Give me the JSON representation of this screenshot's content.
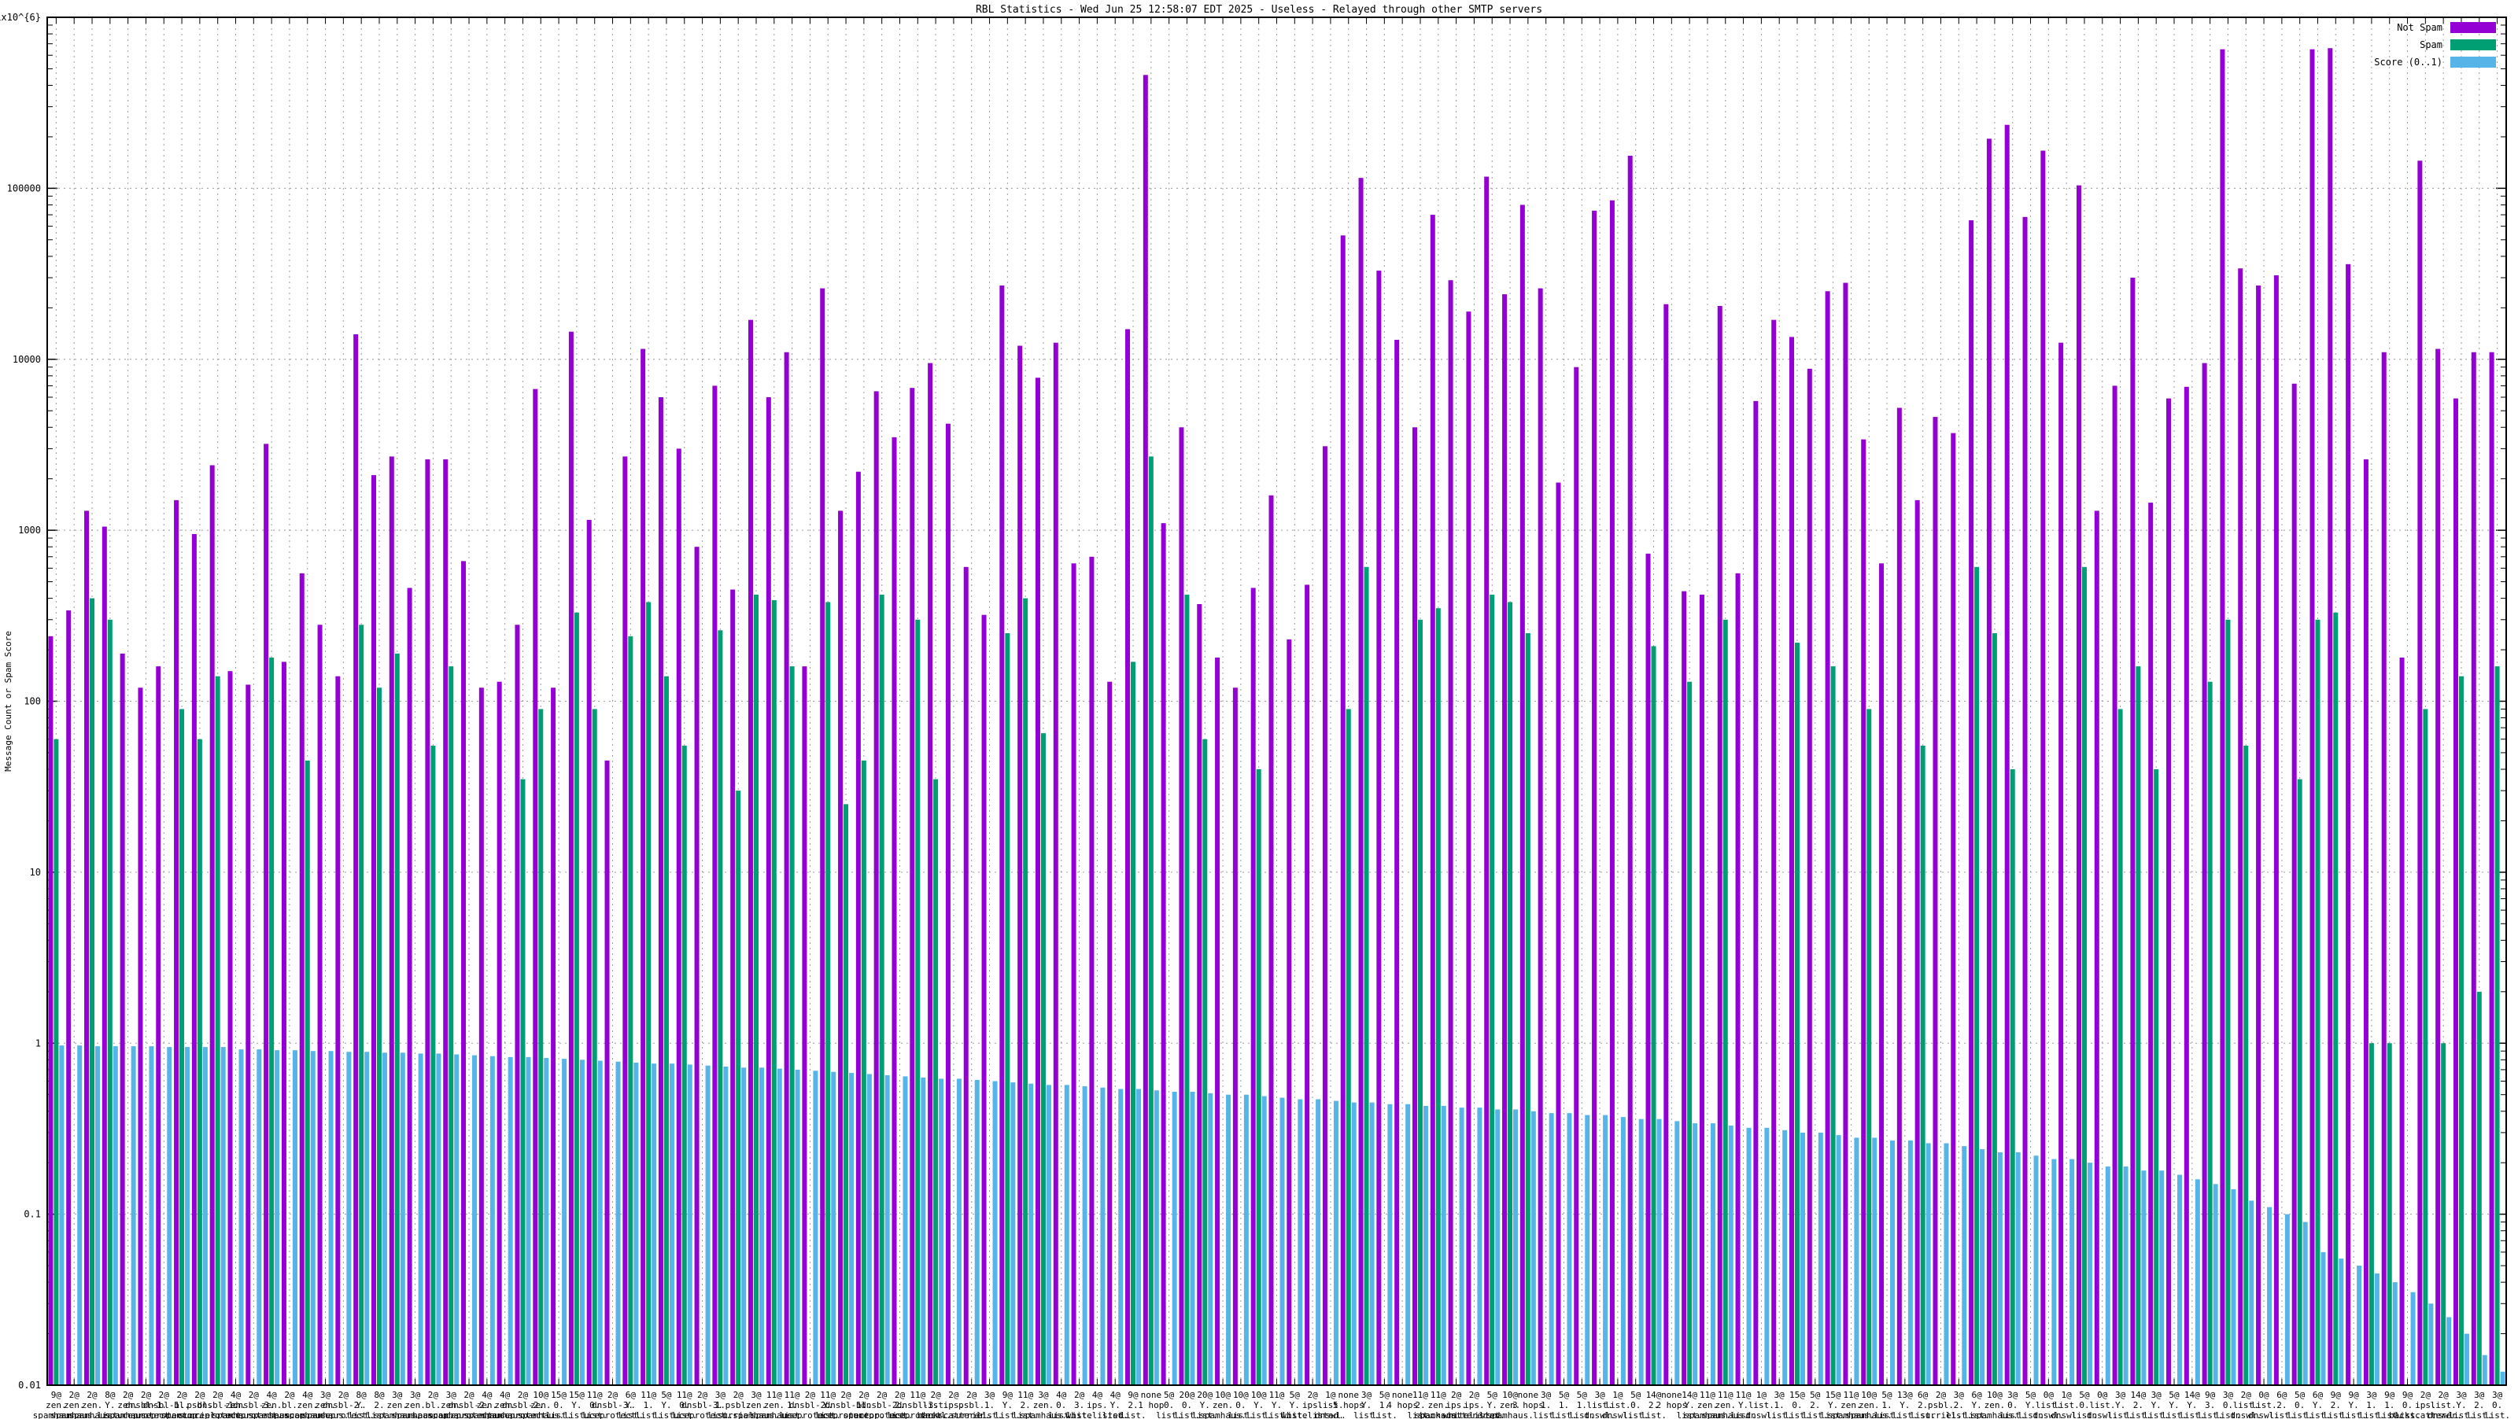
{
  "title": "RBL Statistics - Wed Jun 25 12:58:07 EDT 2025 - Useless - Relayed through other SMTP servers",
  "legend": [
    {
      "label": "Not Spam",
      "color": "#9400d3"
    },
    {
      "label": "Spam",
      "color": "#009e73"
    },
    {
      "label": "Score (0..1)",
      "color": "#56b4e9"
    }
  ],
  "y_axis": {
    "label": "Message Count or Spam Score",
    "tick_labels": [
      "1x10^{6}",
      "100000",
      "10000",
      "1000",
      "100",
      "10",
      "1",
      "0.1",
      "0.01"
    ],
    "min": 0.01,
    "max": 1000000,
    "scale": "log"
  },
  "grid": {
    "color": "#9a9a9a",
    "style": "dashed"
  },
  "chart_data": {
    "type": "bar",
    "series_names": [
      "Not Spam",
      "Spam",
      "Score (0..1)"
    ],
    "group_label_format": "count@ / rbl domain split on dots / hops",
    "groups": [
      [
        "9@",
        "zen.spamhaus.org",
        "1 hop",
        240,
        60,
        0.97
      ],
      [
        "2@",
        "zen.spamhaus.org",
        "3 hops",
        340,
        0,
        0.97
      ],
      [
        "2@",
        "zen.spamhaus.org",
        "4 hops",
        1300,
        400,
        0.96
      ],
      [
        "8@",
        "Y.list.dnswl.org",
        "2 hops",
        1050,
        300,
        0.96
      ],
      [
        "2@",
        "zen.spamhaus.org",
        "1 hop",
        190,
        0,
        0.96
      ],
      [
        "2@",
        "dnsbl-1.uceprotect.net",
        "3 hops",
        120,
        0,
        0.96
      ],
      [
        "2@",
        "dnsbl-1.uceprotect.net",
        "1 hop",
        160,
        0,
        0.95
      ],
      [
        "2@",
        "bl.spamcop.net",
        "3 hops",
        1500,
        90,
        0.95
      ],
      [
        "2@",
        "psbl.surriel.com",
        "1 hop",
        950,
        60,
        0.95
      ],
      [
        "2@",
        "dnsbl-1.uceprotect.net",
        "3 hops",
        2400,
        140,
        0.95
      ],
      [
        "4@",
        "zen.spamhaus.org",
        "5 hops",
        150,
        0,
        0.92
      ],
      [
        "2@",
        "dnsbl-3.uceprotect.net",
        "6 hops",
        125,
        0,
        0.92
      ],
      [
        "4@",
        "zen.spamhaus.org",
        "4 hops",
        3200,
        180,
        0.91
      ],
      [
        "2@",
        "bl.spamcop.net",
        "1 hop",
        170,
        0,
        0.91
      ],
      [
        "4@",
        "zen.spamhaus.org",
        "6 hops",
        560,
        45,
        0.9
      ],
      [
        "3@",
        "zen.spamhaus.org",
        "3 hops",
        280,
        0,
        0.9
      ],
      [
        "2@",
        "dnsbl-2.uceprotect.net",
        "2 hops",
        140,
        0,
        0.89
      ],
      [
        "8@",
        "Y.list.dnswl.org",
        "1 hop",
        14000,
        280,
        0.89
      ],
      [
        "8@",
        "2.list.dnswl.org",
        "1 hop",
        2100,
        120,
        0.88
      ],
      [
        "3@",
        "zen.spamhaus.org",
        "2 hops",
        2700,
        190,
        0.88
      ],
      [
        "3@",
        "zen.spamhaus.org",
        "5 hops",
        460,
        0,
        0.87
      ],
      [
        "2@",
        "bl.spamcop.net",
        "2 hops",
        2600,
        55,
        0.87
      ],
      [
        "3@",
        "zen.spamhaus.org",
        "5 hops",
        2600,
        160,
        0.86
      ],
      [
        "2@",
        "dnsbl-2.uceprotect.net",
        "4 hops",
        660,
        0,
        0.85
      ],
      [
        "4@",
        "zen.spamhaus.org",
        "1 hop",
        120,
        0,
        0.84
      ],
      [
        "4@",
        "zen.spamhaus.org",
        "3 hops",
        130,
        0,
        0.83
      ],
      [
        "2@",
        "dnsbl-2.uceprotect.net",
        "2 hops",
        280,
        35,
        0.83
      ],
      [
        "10@",
        "zen.spamhaus.org",
        "5 hops",
        6700,
        90,
        0.82
      ],
      [
        "15@",
        "0.list.dnswl.org",
        "1 hop",
        120,
        0,
        0.81
      ],
      [
        "15@",
        "Y.list.dnswl.org",
        "1 hop",
        14500,
        330,
        0.8
      ],
      [
        "11@",
        "0.list.dnswl.org",
        "1 hop",
        1150,
        90,
        0.79
      ],
      [
        "2@",
        "dnsbl-3.uceprotect.net",
        "5 hops",
        45,
        0,
        0.78
      ],
      [
        "6@",
        "Y.list.dnswl.org",
        "4 hops",
        2700,
        240,
        0.77
      ],
      [
        "11@",
        "1.list.dnswl.org",
        "2 hops",
        11500,
        380,
        0.76
      ],
      [
        "5@",
        "Y.list.dnswl.org",
        "5 hops",
        6000,
        140,
        0.76
      ],
      [
        "11@",
        "0.list.dnswl.org",
        "2 hops",
        3000,
        55,
        0.75
      ],
      [
        "2@",
        "dnsbl-3.uceprotect.net",
        "2 hops",
        800,
        0,
        0.74
      ],
      [
        "3@",
        "1.list.dnswl.org",
        "1 hop",
        7000,
        260,
        0.73
      ],
      [
        "2@",
        "psbl.surriel.com",
        "2 hops",
        450,
        30,
        0.72
      ],
      [
        "3@",
        "zen.spamhaus.org",
        "1 hop",
        17000,
        420,
        0.72
      ],
      [
        "11@",
        "zen.spamhaus.org",
        "3 hops",
        6000,
        390,
        0.71
      ],
      [
        "11@",
        "1.list.dnswl.org",
        "1 hop",
        11000,
        160,
        0.7
      ],
      [
        "2@",
        "dnsbl-2.uceprotect.net",
        "3 hops",
        160,
        0,
        0.69
      ],
      [
        "11@",
        "Y.list.dnswl.org",
        "1 hop",
        26000,
        380,
        0.68
      ],
      [
        "2@",
        "dnsbl-1.uceprotect.net",
        "7 hops",
        1300,
        25,
        0.67
      ],
      [
        "2@",
        "bl.spamcop.net",
        "5 hops",
        2200,
        45,
        0.66
      ],
      [
        "2@",
        "dnsbl-2.uceprotect.net",
        "1 hop",
        6500,
        420,
        0.65
      ],
      [
        "2@",
        "2.list.dnswl.org",
        "4 hops",
        3500,
        0,
        0.64
      ],
      [
        "11@",
        "dnsbl-3.uceprotect.net",
        "5 hops",
        6800,
        300,
        0.63
      ],
      [
        "2@",
        "list.dnswl.org",
        "4 hops",
        9500,
        35,
        0.62
      ],
      [
        "2@",
        "ips.backscatterer.org",
        "3 hops",
        4200,
        0,
        0.62
      ],
      [
        "2@",
        "psbl.surriel.com",
        "2 hops",
        610,
        0,
        0.61
      ],
      [
        "3@",
        "1.list.dnswl.org",
        "5 hops",
        320,
        0,
        0.6
      ],
      [
        "9@",
        "Y.list.dnswl.org",
        "4 hops",
        27000,
        250,
        0.59
      ],
      [
        "11@",
        "2.list.dnswl.org",
        "2 hops",
        12000,
        400,
        0.58
      ],
      [
        "3@",
        "zen.spamhaus.org",
        "1 hop",
        7800,
        65,
        0.57
      ],
      [
        "4@",
        "0.list.dnswl.org",
        "1 hop",
        12500,
        0,
        0.57
      ],
      [
        "2@",
        "3.list.dnswl.org",
        "1 hop",
        640,
        0,
        0.56
      ],
      [
        "4@",
        "ips.whitelisted.org",
        "1 hop",
        700,
        0,
        0.55
      ],
      [
        "4@",
        "Y.list.dnswl.org",
        "1 hop",
        130,
        0,
        0.54
      ],
      [
        "9@",
        "2.list.dnswl.org",
        "4 hops",
        15000,
        170,
        0.54
      ],
      [
        "none",
        "",
        "1 hop",
        460000,
        2700,
        0.53
      ],
      [
        "5@",
        "0.list.dnswl.org",
        "4 hops",
        1100,
        0,
        0.52
      ],
      [
        "20@",
        "0.list.dnswl.org",
        "1 hop",
        4000,
        420,
        0.52
      ],
      [
        "20@",
        "Y.list.dnswl.org",
        "1 hop",
        370,
        60,
        0.51
      ],
      [
        "10@",
        "zen.spamhaus.org",
        "1 hop",
        180,
        0,
        0.5
      ],
      [
        "10@",
        "0.list.dnswl.org",
        "1 hop",
        120,
        0,
        0.5
      ],
      [
        "10@",
        "Y.list.dnswl.org",
        "1 hop",
        460,
        40,
        0.49
      ],
      [
        "11@",
        "Y.list.dnswl.org",
        "1 hop",
        1600,
        0,
        0.48
      ],
      [
        "5@",
        "Y.list.dnswl.org",
        "4 hops",
        230,
        0,
        0.47
      ],
      [
        "2@",
        "ips.whitelisted.org",
        "4 hops",
        480,
        0,
        0.47
      ],
      [
        "1@",
        "list.dnswl.org",
        "5 hops",
        3100,
        0,
        0.46
      ],
      [
        "none",
        "",
        "5 hops",
        53000,
        90,
        0.45
      ],
      [
        "3@",
        "Y.list.dnswl.org",
        "1 hop",
        115000,
        610,
        0.45
      ],
      [
        "5@",
        "1.list.dnswl.org",
        "4 hops",
        33000,
        0,
        0.44
      ],
      [
        "none",
        "",
        "4 hops",
        13000,
        0,
        0.44
      ],
      [
        "11@",
        "2.list.dnswl.org",
        "2 hops",
        4000,
        300,
        0.43
      ],
      [
        "11@",
        "zen.spamhaus.org",
        "3 hops",
        70000,
        350,
        0.43
      ],
      [
        "2@",
        "ips.backscatterer.org",
        "2 hops",
        29000,
        0,
        0.42
      ],
      [
        "2@",
        "ips.whitelisted.org",
        "2 hops",
        19000,
        0,
        0.42
      ],
      [
        "5@",
        "Y.list.dnswl.org",
        "1 hop",
        117000,
        420,
        0.41
      ],
      [
        "10@",
        "zen.spamhaus.org",
        "3 hops",
        24000,
        380,
        0.41
      ],
      [
        "none",
        "",
        "3 hops",
        80000,
        250,
        0.4
      ],
      [
        "3@",
        "1.list.dnswl.org",
        "1 hop",
        26000,
        0,
        0.39
      ],
      [
        "5@",
        "1.list.dnswl.org",
        "1 hop",
        1900,
        0,
        0.39
      ],
      [
        "5@",
        "1.list.dnswl.org",
        "1 hop",
        9000,
        0,
        0.38
      ],
      [
        "3@",
        "list.dnswl.org",
        "1 hop",
        74000,
        0,
        0.38
      ],
      [
        "1@",
        "list.dnswl.org",
        "1 hop",
        85000,
        0,
        0.37
      ],
      [
        "5@",
        "0.list.dnswl.org",
        "1 hop",
        155000,
        0,
        0.36
      ],
      [
        "14@",
        "2.list.dnswl.org",
        "2 hops",
        730,
        210,
        0.36
      ],
      [
        "none",
        "",
        "2 hops",
        21000,
        0,
        0.35
      ],
      [
        "14@",
        "Y.list.dnswl.org",
        "1 hop",
        440,
        130,
        0.34
      ],
      [
        "11@",
        "zen.spamhaus.org",
        "6 hops",
        420,
        0,
        0.34
      ],
      [
        "11@",
        "zen.spamhaus.org",
        "1 hop",
        20500,
        300,
        0.33
      ],
      [
        "11@",
        "Y.list.dnswl.org",
        "3 hops",
        560,
        0,
        0.32
      ],
      [
        "1@",
        "list.dnswl.org",
        "3 hops",
        5700,
        0,
        0.32
      ],
      [
        "3@",
        "1.list.dnswl.org",
        "3 hops",
        17000,
        0,
        0.31
      ],
      [
        "15@",
        "0.list.dnswl.org",
        "2 hops",
        13500,
        220,
        0.3
      ],
      [
        "5@",
        "2.list.dnswl.org",
        "2 hops",
        8800,
        0,
        0.3
      ],
      [
        "15@",
        "Y.list.dnswl.org",
        "2 hops",
        25000,
        160,
        0.29
      ],
      [
        "11@",
        "zen.spamhaus.org",
        "5 hops",
        28000,
        0,
        0.28
      ],
      [
        "10@",
        "zen.spamhaus.org",
        "3 hops",
        3400,
        90,
        0.28
      ],
      [
        "5@",
        "1.list.dnswl.org",
        "2 hops",
        640,
        0,
        0.27
      ],
      [
        "13@",
        "Y.list.dnswl.org",
        "1 hop",
        5200,
        0,
        0.27
      ],
      [
        "6@",
        "2.list.dnswl.org",
        "3 hops",
        1500,
        55,
        0.26
      ],
      [
        "2@",
        "psbl.surriel.com",
        "1 hop",
        4600,
        0,
        0.26
      ],
      [
        "3@",
        "2.list.dnswl.org",
        "1 hop",
        3700,
        0,
        0.25
      ],
      [
        "6@",
        "Y.list.dnswl.org",
        "4 hops",
        65000,
        610,
        0.24
      ],
      [
        "10@",
        "zen.spamhaus.org",
        "2 hops",
        195000,
        250,
        0.23
      ],
      [
        "3@",
        "0.list.dnswl.org",
        "2 hops",
        235000,
        40,
        0.23
      ],
      [
        "5@",
        "Y.list.dnswl.org",
        "2 hops",
        68000,
        0,
        0.22
      ],
      [
        "0@",
        "list.dnswl.org",
        "5 hops",
        166000,
        0,
        0.21
      ],
      [
        "1@",
        "list.dnswl.org",
        "4 hops",
        12500,
        0,
        0.21
      ],
      [
        "5@",
        "0.list.dnswl.org",
        "2 hops",
        104000,
        610,
        0.2
      ],
      [
        "0@",
        "list.dnswl.org",
        "2 hops",
        1300,
        0,
        0.19
      ],
      [
        "3@",
        "Y.list.dnswl.org",
        "2 hops",
        7000,
        90,
        0.19
      ],
      [
        "14@",
        "2.list.dnswl.org",
        "2 hops",
        30000,
        160,
        0.18
      ],
      [
        "3@",
        "Y.list.dnswl.org",
        "1 hop",
        1450,
        40,
        0.18
      ],
      [
        "5@",
        "Y.list.dnswl.org",
        "2 hops",
        5900,
        0,
        0.17
      ],
      [
        "14@",
        "Y.list.dnswl.org",
        "2 hops",
        6900,
        0,
        0.16
      ],
      [
        "9@",
        "3.list.dnswl.org",
        "3 hops",
        9500,
        130,
        0.15
      ],
      [
        "3@",
        "0.list.dnswl.org",
        "1 hop",
        650000,
        300,
        0.14
      ],
      [
        "2@",
        "list.dnswl.org",
        "1 hop",
        34000,
        55,
        0.12
      ],
      [
        "0@",
        "list.dnswl.org",
        "3 hops",
        27000,
        0,
        0.11
      ],
      [
        "6@",
        "2.list.dnswl.org",
        "2 hops",
        31000,
        0,
        0.1
      ],
      [
        "5@",
        "0.list.dnswl.org",
        "4 hops",
        7200,
        35,
        0.09
      ],
      [
        "6@",
        "Y.list.dnswl.org",
        "2 hops",
        650000,
        300,
        0.06
      ],
      [
        "9@",
        "2.list.dnswl.org",
        "1 hop",
        660000,
        330,
        0.055
      ],
      [
        "9@",
        "Y.list.dnswl.org",
        "1 hop",
        36000,
        0,
        0.05
      ],
      [
        "3@",
        "1.list.dnswl.org",
        "2 hops",
        2600,
        1,
        0.045
      ],
      [
        "9@",
        "1.list.dnswl.org",
        "5 hops",
        11000,
        1,
        0.04
      ],
      [
        "9@",
        "0.list.dnswl.org",
        "1 hop",
        180,
        0,
        0.035
      ],
      [
        "2@",
        "ips.backscatterer.org",
        "3 hops",
        145000,
        90,
        0.03
      ],
      [
        "2@",
        "list.dnswl.org",
        "2 hops",
        11500,
        1,
        0.025
      ],
      [
        "3@",
        "Y.list.dnswl.org",
        "4 hops",
        5900,
        140,
        0.02
      ],
      [
        "3@",
        "2.list.dnswl.org",
        "2 hops",
        11000,
        2,
        0.015
      ],
      [
        "3@",
        "0.list.dnswl.org",
        "5 hops",
        11000,
        160,
        0.012
      ]
    ]
  }
}
